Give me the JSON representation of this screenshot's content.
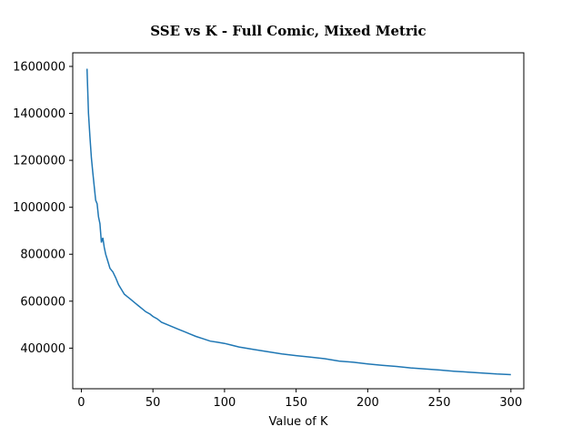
{
  "chart_data": {
    "type": "line",
    "title": "SSE vs K - Full Comic, Mixed Metric",
    "xlabel": "Value of K",
    "ylabel": "",
    "xlim": [
      -6,
      309
    ],
    "ylim": [
      227000,
      1658000
    ],
    "xticks": [
      0,
      50,
      100,
      150,
      200,
      250,
      300
    ],
    "yticks": [
      400000,
      600000,
      800000,
      1000000,
      1200000,
      1400000,
      1600000
    ],
    "grid": false,
    "line_color": "#1f77b4",
    "series": [
      {
        "x": [
          4,
          5,
          6,
          7,
          8,
          9,
          10,
          11,
          12,
          13,
          14,
          15,
          16,
          17,
          18,
          19,
          20,
          22,
          24,
          26,
          28,
          30,
          32,
          34,
          36,
          38,
          40,
          42,
          45,
          48,
          50,
          53,
          56,
          60,
          64,
          68,
          72,
          76,
          80,
          85,
          90,
          95,
          100,
          110,
          120,
          130,
          140,
          150,
          160,
          170,
          180,
          190,
          200,
          210,
          220,
          230,
          240,
          250,
          260,
          270,
          280,
          290,
          300
        ],
        "y": [
          1590000,
          1400000,
          1300000,
          1210000,
          1150000,
          1090000,
          1030000,
          1015000,
          960000,
          930000,
          850000,
          870000,
          830000,
          800000,
          780000,
          760000,
          740000,
          725000,
          700000,
          670000,
          650000,
          630000,
          620000,
          610000,
          600000,
          590000,
          580000,
          570000,
          555000,
          545000,
          535000,
          525000,
          510000,
          500000,
          490000,
          480000,
          470000,
          460000,
          450000,
          440000,
          430000,
          425000,
          420000,
          405000,
          395000,
          385000,
          375000,
          368000,
          362000,
          355000,
          345000,
          340000,
          333000,
          327000,
          322000,
          316000,
          311000,
          307000,
          302000,
          298000,
          294000,
          290000,
          287000
        ]
      }
    ]
  }
}
